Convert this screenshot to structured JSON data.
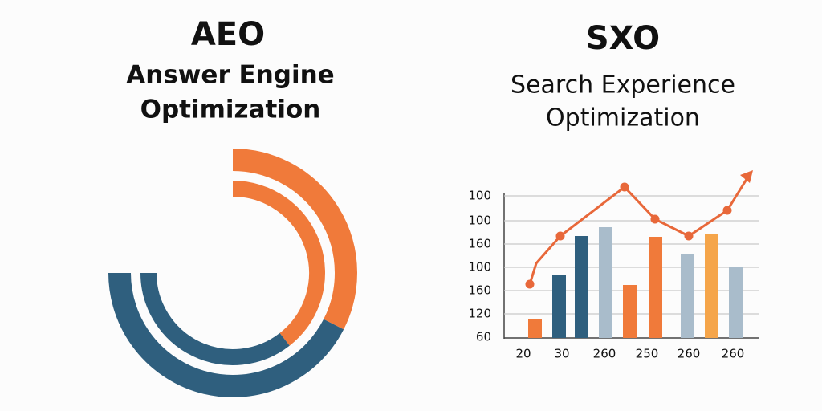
{
  "left": {
    "title": "AEO",
    "subtitle": [
      "Answer Engine",
      "Optimization"
    ]
  },
  "right": {
    "title": "SXO",
    "subtitle": [
      "Search Experience",
      "Optimization"
    ],
    "chart": {
      "y_labels": [
        "100",
        "100",
        "160",
        "100",
        "160",
        "120",
        "60"
      ],
      "x_labels": [
        "20",
        "30",
        "260",
        "250",
        "260",
        "260"
      ]
    }
  }
}
